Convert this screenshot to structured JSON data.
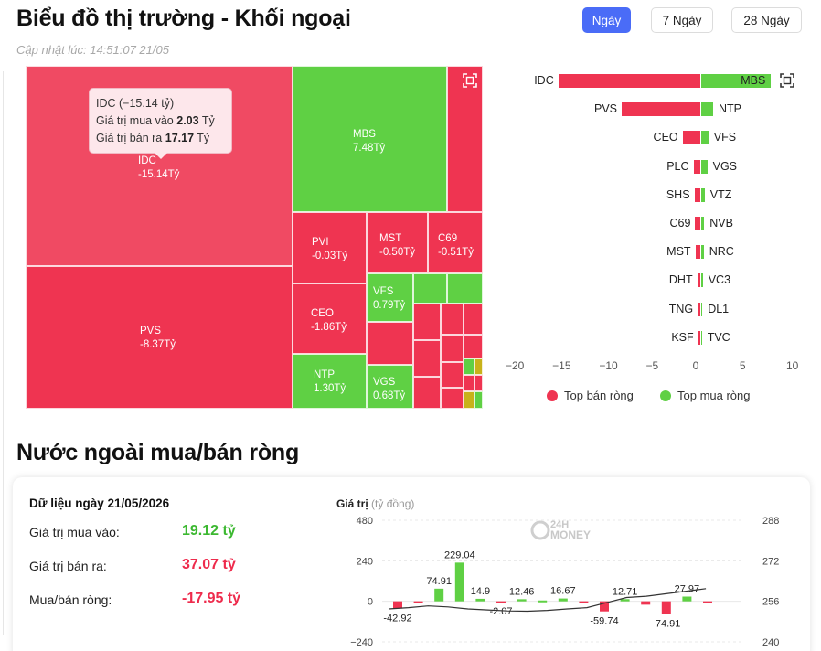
{
  "header": {
    "title": "Biểu đồ thị trường - Khối ngoại",
    "updated": "Cập nhật lúc: 14:51:07 21/05",
    "ranges": [
      "Ngày",
      "7 Ngày",
      "28 Ngày"
    ],
    "active_range": "Ngày"
  },
  "treemap": {
    "tiles": [
      {
        "code": "IDC",
        "value": "-15.14Tỷ"
      },
      {
        "code": "MBS",
        "value": "7.48Tỷ"
      },
      {
        "code": "PVI",
        "value": "-0.03Tỷ"
      },
      {
        "code": "MST",
        "value": "-0.50Tỷ"
      },
      {
        "code": "C69",
        "value": "-0.51Tỷ"
      },
      {
        "code": "PVS",
        "value": "-8.37Tỷ"
      },
      {
        "code": "CEO",
        "value": "-1.86Tỷ"
      },
      {
        "code": "VFS",
        "value": "0.79Tỷ"
      },
      {
        "code": "NTP",
        "value": "1.30Tỷ"
      },
      {
        "code": "VGS",
        "value": "0.68Tỷ"
      }
    ],
    "tooltip": {
      "title": "IDC (−15.14 tỷ)",
      "buy_label": "Giá trị mua vào",
      "buy_value": "2.03",
      "sell_label": "Giá trị bán ra",
      "sell_value": "17.17",
      "unit": "Tỷ"
    }
  },
  "chart_data": [
    {
      "type": "bar",
      "orientation": "horizontal",
      "sell_categories": [
        "IDC",
        "PVS",
        "CEO",
        "PLC",
        "SHS",
        "C69",
        "MST",
        "DHT",
        "TNG",
        "KSF"
      ],
      "sell_values": [
        -15.14,
        -8.37,
        -1.86,
        -0.7,
        -0.6,
        -0.51,
        -0.5,
        -0.3,
        -0.25,
        -0.2
      ],
      "buy_categories": [
        "MBS",
        "NTP",
        "VFS",
        "VGS",
        "VTZ",
        "NVB",
        "NRC",
        "VC3",
        "DL1",
        "TVC"
      ],
      "buy_values": [
        7.48,
        1.3,
        0.79,
        0.68,
        0.4,
        0.35,
        0.3,
        0.2,
        0.15,
        0.1
      ],
      "x_ticks": [
        "−20",
        "−15",
        "−10",
        "−5",
        "0",
        "5",
        "10"
      ],
      "xlim": [
        -20,
        10
      ],
      "legend": [
        "Top bán ròng",
        "Top mua ròng"
      ],
      "colors": {
        "sell": "#ef3451",
        "buy": "#5fd044"
      }
    },
    {
      "type": "bar",
      "title": "Giá trị",
      "unit": "(tỷ đồng)",
      "values": [
        -42.92,
        -10,
        74.91,
        229.04,
        14.9,
        -2.07,
        12.46,
        5,
        16.67,
        -5,
        -59.74,
        12.71,
        -20,
        -74.91,
        27.97,
        -10
      ],
      "labels_shown": [
        "-42.92",
        "74.91",
        "229.04",
        "14.9",
        "-2.07",
        "12.46",
        "16.67",
        "-59.74",
        "12.71",
        "-74.91",
        "27.97"
      ],
      "y_ticks_left": [
        "480",
        "240",
        "0",
        "−240"
      ],
      "y_ticks_right": [
        "288",
        "272",
        "256",
        "240"
      ],
      "ylim": [
        -240,
        480
      ],
      "ylim_right": [
        240,
        288
      ]
    }
  ],
  "foreign": {
    "section_title": "Nước ngoài mua/bán ròng",
    "date_label": "Dữ liệu ngày 21/05/2026",
    "buy_label": "Giá trị mua vào:",
    "buy_value": "19.12 tỷ",
    "sell_label": "Giá trị bán ra:",
    "sell_value": "37.07 tỷ",
    "net_label": "Mua/bán ròng:",
    "net_value": "-17.95 tỷ",
    "watermark_top": "24H",
    "watermark_bottom": "MONEY"
  }
}
